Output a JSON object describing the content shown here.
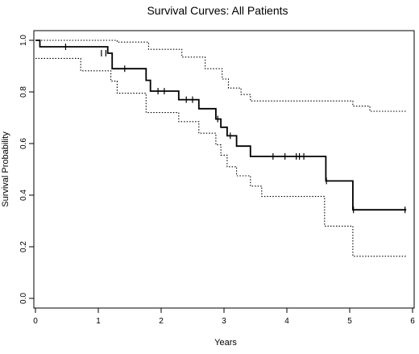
{
  "chart_data": {
    "type": "line",
    "title": "Survival Curves: All Patients",
    "xlabel": "Years",
    "ylabel": "Survival Probability",
    "xlim": [
      0,
      6
    ],
    "ylim": [
      0,
      1.0
    ],
    "x_ticks": [
      "0",
      "1",
      "2",
      "3",
      "4",
      "5",
      "6"
    ],
    "y_ticks": [
      "0.0",
      "0.2",
      "0.4",
      "0.6",
      "0.8",
      "1.0"
    ],
    "grid": false,
    "legend": "none",
    "series": [
      {
        "role": "estimate",
        "style": "solid",
        "step": true,
        "points": [
          [
            0,
            1.0
          ],
          [
            0.07,
            1.0
          ],
          [
            0.07,
            0.975
          ],
          [
            1.15,
            0.975
          ],
          [
            1.15,
            0.95
          ],
          [
            1.22,
            0.95
          ],
          [
            1.22,
            0.89
          ],
          [
            1.76,
            0.89
          ],
          [
            1.76,
            0.845
          ],
          [
            1.83,
            0.845
          ],
          [
            1.83,
            0.803
          ],
          [
            2.28,
            0.803
          ],
          [
            2.28,
            0.77
          ],
          [
            2.6,
            0.77
          ],
          [
            2.6,
            0.735
          ],
          [
            2.87,
            0.735
          ],
          [
            2.87,
            0.695
          ],
          [
            2.95,
            0.695
          ],
          [
            2.95,
            0.663
          ],
          [
            3.05,
            0.663
          ],
          [
            3.05,
            0.63
          ],
          [
            3.2,
            0.63
          ],
          [
            3.2,
            0.59
          ],
          [
            3.42,
            0.59
          ],
          [
            3.42,
            0.55
          ],
          [
            4.62,
            0.55
          ],
          [
            4.62,
            0.455
          ],
          [
            5.05,
            0.455
          ],
          [
            5.05,
            0.343
          ],
          [
            5.9,
            0.343
          ]
        ],
        "censored": [
          [
            0.48,
            0.975
          ],
          [
            1.05,
            0.95
          ],
          [
            1.12,
            0.95
          ],
          [
            1.42,
            0.89
          ],
          [
            1.95,
            0.803
          ],
          [
            2.05,
            0.803
          ],
          [
            2.4,
            0.77
          ],
          [
            2.5,
            0.77
          ],
          [
            2.9,
            0.695
          ],
          [
            3.1,
            0.63
          ],
          [
            3.78,
            0.55
          ],
          [
            3.97,
            0.55
          ],
          [
            4.15,
            0.55
          ],
          [
            4.2,
            0.55
          ],
          [
            4.27,
            0.55
          ],
          [
            4.63,
            0.455
          ],
          [
            5.06,
            0.343
          ],
          [
            5.88,
            0.343
          ]
        ]
      },
      {
        "role": "upper-confidence-bound",
        "style": "dotted",
        "step": true,
        "points": [
          [
            0,
            1.0
          ],
          [
            1.3,
            1.0
          ],
          [
            1.3,
            0.993
          ],
          [
            1.8,
            0.993
          ],
          [
            1.8,
            0.965
          ],
          [
            2.33,
            0.965
          ],
          [
            2.33,
            0.935
          ],
          [
            2.7,
            0.935
          ],
          [
            2.7,
            0.89
          ],
          [
            2.97,
            0.89
          ],
          [
            2.97,
            0.85
          ],
          [
            3.07,
            0.85
          ],
          [
            3.07,
            0.815
          ],
          [
            3.27,
            0.815
          ],
          [
            3.27,
            0.79
          ],
          [
            3.42,
            0.79
          ],
          [
            3.42,
            0.765
          ],
          [
            5.05,
            0.765
          ],
          [
            5.05,
            0.745
          ],
          [
            5.32,
            0.745
          ],
          [
            5.32,
            0.725
          ],
          [
            5.9,
            0.725
          ]
        ]
      },
      {
        "role": "lower-confidence-bound",
        "style": "dotted",
        "step": true,
        "points": [
          [
            0,
            0.93
          ],
          [
            0.72,
            0.93
          ],
          [
            0.72,
            0.882
          ],
          [
            1.2,
            0.882
          ],
          [
            1.2,
            0.842
          ],
          [
            1.3,
            0.842
          ],
          [
            1.3,
            0.795
          ],
          [
            1.76,
            0.795
          ],
          [
            1.76,
            0.72
          ],
          [
            2.28,
            0.72
          ],
          [
            2.28,
            0.685
          ],
          [
            2.6,
            0.685
          ],
          [
            2.6,
            0.64
          ],
          [
            2.87,
            0.64
          ],
          [
            2.87,
            0.595
          ],
          [
            2.95,
            0.595
          ],
          [
            2.95,
            0.555
          ],
          [
            3.05,
            0.555
          ],
          [
            3.05,
            0.51
          ],
          [
            3.2,
            0.51
          ],
          [
            3.2,
            0.475
          ],
          [
            3.42,
            0.475
          ],
          [
            3.42,
            0.435
          ],
          [
            3.6,
            0.435
          ],
          [
            3.6,
            0.395
          ],
          [
            4.6,
            0.395
          ],
          [
            4.6,
            0.28
          ],
          [
            5.05,
            0.28
          ],
          [
            5.05,
            0.163
          ],
          [
            5.9,
            0.163
          ]
        ]
      }
    ]
  }
}
